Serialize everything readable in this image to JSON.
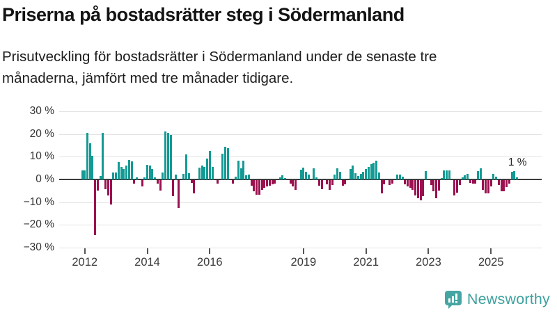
{
  "header": {
    "title": "Priserna på bostadsrätter steg i Södermanland",
    "subtitle_lines": [
      "Prisutveckling för bostadsrätter i Södermanland under de senaste tre",
      "månaderna, jämfört med tre månader tidigare."
    ]
  },
  "chart": {
    "y_tick_labels": [
      "30 %",
      "20 %",
      "10 %",
      "0 %",
      "−10 %",
      "−20 %",
      "−30 %"
    ],
    "y_tick_values": [
      30,
      20,
      10,
      0,
      -10,
      -20,
      -30
    ],
    "x_tick_labels": [
      "2012",
      "2014",
      "2016",
      "2019",
      "2021",
      "2023",
      "2025"
    ],
    "annotation": "1 %",
    "colors": {
      "positive_bar": "#149a94",
      "negative_bar": "#9b1150",
      "gridline": "#e3e3e3",
      "zero_line": "#3b3b3b"
    }
  },
  "chart_data": {
    "type": "bar",
    "title": "Priserna på bostadsrätter steg i Södermanland",
    "xlabel": "",
    "ylabel": "%",
    "ylim": [
      -30,
      30
    ],
    "grid": true,
    "legend": false,
    "unit": "percent",
    "frequency": "monthly",
    "start_month": "2011-12",
    "last_value_label": "1 %",
    "values": [
      4,
      4,
      20.5,
      16,
      10.5,
      -24,
      -4.5,
      1.5,
      20.5,
      -4,
      -6.5,
      -10.5,
      3,
      3,
      7.5,
      5.5,
      4.5,
      6,
      8.5,
      8,
      -1.5,
      1,
      0,
      -2.5,
      1,
      6.5,
      6,
      4.5,
      1,
      -1.5,
      -4.5,
      3,
      21,
      20.5,
      19.5,
      -7,
      2.2,
      -12,
      0,
      2.5,
      11,
      2.8,
      -1,
      -5.8,
      0,
      5.2,
      6.2,
      5.4,
      9.3,
      12.4,
      5.4,
      0,
      -1.5,
      0,
      11.3,
      14.4,
      13.8,
      0,
      -1.5,
      1.2,
      8.4,
      4.9,
      8.2,
      1.8,
      2.2,
      -2.2,
      -4.9,
      -6.3,
      -6.3,
      -4.3,
      -3.1,
      -2.6,
      -2.2,
      -1.8,
      -1.5,
      0,
      1.0,
      1.9,
      0.7,
      0,
      -1.5,
      -2.6,
      -4.3,
      0,
      4.4,
      5.1,
      3.4,
      2.2,
      0,
      4.9,
      1.0,
      -2.2,
      -3.9,
      0,
      -1.8,
      -4.3,
      -2.0,
      2.2,
      4.9,
      3.3,
      -2.4,
      -1.6,
      0,
      4.5,
      6.2,
      2.8,
      1.4,
      2.3,
      3.3,
      4.5,
      5.4,
      6.6,
      7.2,
      8.2,
      3.0,
      -5.7,
      -1.6,
      0,
      -1.9,
      -1.4,
      0,
      2.0,
      2.0,
      1.2,
      -1.6,
      -2.7,
      -3.1,
      -4.1,
      -6.5,
      -7.8,
      -8.6,
      -6.8,
      3.8,
      0,
      -1.9,
      -4.9,
      -7.8,
      -4.4,
      0.7,
      4.1,
      4.1,
      4.1,
      0,
      -6.5,
      -5.5,
      -1.9,
      1.0,
      1.8,
      2.5,
      -1.1,
      -1.3,
      -1.5,
      3.6,
      5.0,
      -4.1,
      -5.8,
      -5.6,
      -2.5,
      2.3,
      1.3,
      -2.0,
      -4.8,
      -4.8,
      -2.8,
      -1.3,
      3.4,
      3.6,
      1.0
    ]
  },
  "footer": {
    "brand": "Newsworthy",
    "logo_color": "#45a5a2"
  }
}
